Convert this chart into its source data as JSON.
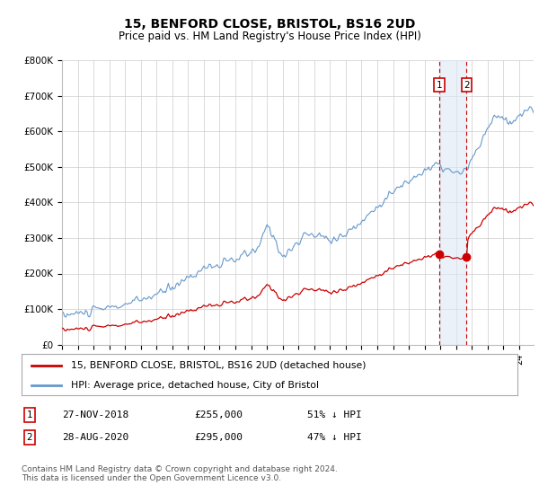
{
  "title": "15, BENFORD CLOSE, BRISTOL, BS16 2UD",
  "subtitle": "Price paid vs. HM Land Registry's House Price Index (HPI)",
  "ylim": [
    0,
    800000
  ],
  "yticks": [
    0,
    100000,
    200000,
    300000,
    400000,
    500000,
    600000,
    700000,
    800000
  ],
  "ytick_labels": [
    "£0",
    "£100K",
    "£200K",
    "£300K",
    "£400K",
    "£500K",
    "£600K",
    "£700K",
    "£800K"
  ],
  "hpi_color": "#6699cc",
  "price_color": "#cc0000",
  "marker1_year": 2018.917,
  "marker2_year": 2020.667,
  "marker1_price": 255000,
  "marker2_price": 295000,
  "legend_line1": "15, BENFORD CLOSE, BRISTOL, BS16 2UD (detached house)",
  "legend_line2": "HPI: Average price, detached house, City of Bristol",
  "note1_num": "1",
  "note1_date": "27-NOV-2018",
  "note1_price": "£255,000",
  "note1_hpi": "51% ↓ HPI",
  "note2_num": "2",
  "note2_date": "28-AUG-2020",
  "note2_price": "£295,000",
  "note2_hpi": "47% ↓ HPI",
  "footer": "Contains HM Land Registry data © Crown copyright and database right 2024.\nThis data is licensed under the Open Government Licence v3.0.",
  "bg_color": "#ffffff",
  "grid_color": "#cccccc",
  "shade_color": "#dce8f5"
}
